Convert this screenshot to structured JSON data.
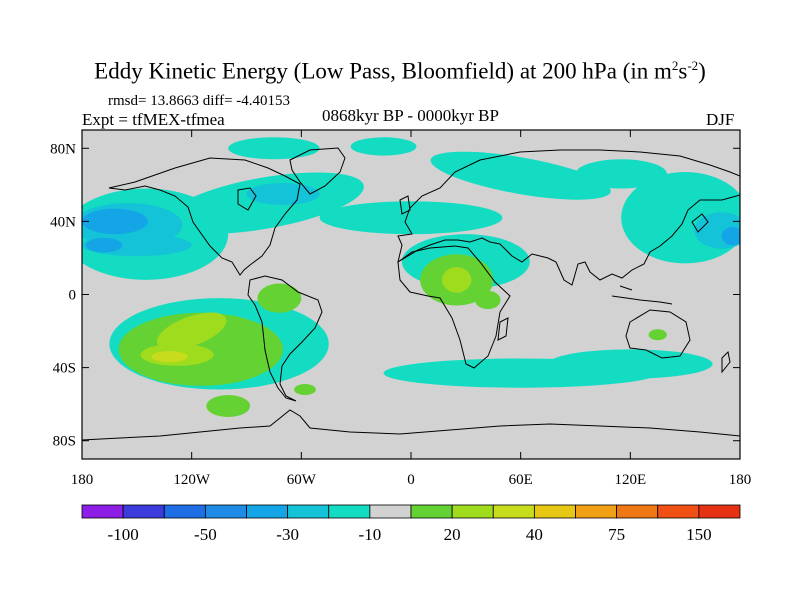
{
  "title": {
    "main": "Eddy Kinetic Energy (Low Pass, Bloomfield) at 200 hPa (in m",
    "sup1": "2",
    "mid": "s",
    "sup2": "-2",
    "end": ")"
  },
  "stats": "rmsd= 13.8663 diff= -4.40153",
  "experiment": "Expt = tfMEX-tfmea",
  "period": "0868kyr BP - 0000kyr BP",
  "season": "DJF",
  "chart_data": {
    "type": "heatmap",
    "projection": "cylindrical-equidistant",
    "xlim": [
      -180,
      180
    ],
    "ylim": [
      -90,
      90
    ],
    "x_ticks": [
      {
        "value": -180,
        "label": "180"
      },
      {
        "value": -120,
        "label": "120W"
      },
      {
        "value": -60,
        "label": "60W"
      },
      {
        "value": 0,
        "label": "0"
      },
      {
        "value": 60,
        "label": "60E"
      },
      {
        "value": 120,
        "label": "120E"
      },
      {
        "value": 180,
        "label": "180"
      }
    ],
    "y_ticks": [
      {
        "value": 80,
        "label": "80N"
      },
      {
        "value": 40,
        "label": "40N"
      },
      {
        "value": 0,
        "label": "0"
      },
      {
        "value": -40,
        "label": "40S"
      },
      {
        "value": -80,
        "label": "80S"
      }
    ],
    "colorbar": {
      "colors": [
        "#8c1ee6",
        "#3c3cdc",
        "#1e6ee6",
        "#1e8ce6",
        "#14a5e6",
        "#14c3d7",
        "#14dcc3",
        "#d2d2d2",
        "#64d232",
        "#a0dc1e",
        "#c8dc1e",
        "#e6c814",
        "#f0a014",
        "#f07814",
        "#f05014",
        "#e63214"
      ],
      "tick_labels": [
        {
          "boundary": 1,
          "label": "-100"
        },
        {
          "boundary": 3,
          "label": "-50"
        },
        {
          "boundary": 5,
          "label": "-30"
        },
        {
          "boundary": 7,
          "label": "-10"
        },
        {
          "boundary": 9,
          "label": "20"
        },
        {
          "boundary": 11,
          "label": "40"
        },
        {
          "boundary": 13,
          "label": "75"
        },
        {
          "boundary": 15,
          "label": "150"
        }
      ]
    },
    "regions": [
      {
        "level": 6,
        "lon": -145,
        "lat": 33,
        "rlon": 45,
        "rlat": 25,
        "rot": 0
      },
      {
        "level": 6,
        "lon": -80,
        "lat": 50,
        "rlon": 55,
        "rlat": 14,
        "rot": -10
      },
      {
        "level": 6,
        "lon": 0,
        "lat": 42,
        "rlon": 50,
        "rlat": 9,
        "rot": 0
      },
      {
        "level": 6,
        "lon": 60,
        "lat": 65,
        "rlon": 50,
        "rlat": 10,
        "rot": 10
      },
      {
        "level": 6,
        "lon": 150,
        "lat": 42,
        "rlon": 35,
        "rlat": 25,
        "rot": 0
      },
      {
        "level": 6,
        "lon": -75,
        "lat": 80,
        "rlon": 25,
        "rlat": 6,
        "rot": 0
      },
      {
        "level": 6,
        "lon": -15,
        "lat": 81,
        "rlon": 18,
        "rlat": 5,
        "rot": 0
      },
      {
        "level": 6,
        "lon": 115,
        "lat": 66,
        "rlon": 25,
        "rlat": 8,
        "rot": 0
      },
      {
        "level": 6,
        "lon": 30,
        "lat": 18,
        "rlon": 35,
        "rlat": 15,
        "rot": 0
      },
      {
        "level": 6,
        "lon": -105,
        "lat": -27,
        "rlon": 60,
        "rlat": 25,
        "rot": 0
      },
      {
        "level": 6,
        "lon": 60,
        "lat": -43,
        "rlon": 75,
        "rlat": 8,
        "rot": 0
      },
      {
        "level": 6,
        "lon": 120,
        "lat": -38,
        "rlon": 45,
        "rlat": 8,
        "rot": 0
      },
      {
        "level": 5,
        "lon": -155,
        "lat": 38,
        "rlon": 30,
        "rlat": 12,
        "rot": 0
      },
      {
        "level": 5,
        "lon": -150,
        "lat": 27,
        "rlon": 30,
        "rlat": 6,
        "rot": 0
      },
      {
        "level": 5,
        "lon": 170,
        "lat": 35,
        "rlon": 15,
        "rlat": 10,
        "rot": 0
      },
      {
        "level": 5,
        "lon": -70,
        "lat": 55,
        "rlon": 20,
        "rlat": 6,
        "rot": 0
      },
      {
        "level": 4,
        "lon": -162,
        "lat": 40,
        "rlon": 18,
        "rlat": 7,
        "rot": 0
      },
      {
        "level": 4,
        "lon": -168,
        "lat": 27,
        "rlon": 10,
        "rlat": 4,
        "rot": 0
      },
      {
        "level": 4,
        "lon": 176,
        "lat": 32,
        "rlon": 6,
        "rlat": 5,
        "rot": 0
      },
      {
        "level": 7,
        "lon": -135,
        "lat": 32,
        "rlon": 13,
        "rlat": 4,
        "rot": 0
      },
      {
        "level": 7,
        "lon": -95,
        "lat": 58,
        "rlon": 10,
        "rlat": 4,
        "rot": 0
      },
      {
        "level": 8,
        "lon": -115,
        "lat": -30,
        "rlon": 45,
        "rlat": 20,
        "rot": 0
      },
      {
        "level": 8,
        "lon": -72,
        "lat": -2,
        "rlon": 12,
        "rlat": 8,
        "rot": 0
      },
      {
        "level": 8,
        "lon": 25,
        "lat": 8,
        "rlon": 20,
        "rlat": 14,
        "rot": 0
      },
      {
        "level": 8,
        "lon": -100,
        "lat": -61,
        "rlon": 12,
        "rlat": 6,
        "rot": 0
      },
      {
        "level": 8,
        "lon": 42,
        "lat": -3,
        "rlon": 7,
        "rlat": 5,
        "rot": 0
      },
      {
        "level": 8,
        "lon": -58,
        "lat": -52,
        "rlon": 6,
        "rlat": 3,
        "rot": 0
      },
      {
        "level": 8,
        "lon": 135,
        "lat": -22,
        "rlon": 5,
        "rlat": 3,
        "rot": 0
      },
      {
        "level": 9,
        "lon": -120,
        "lat": -20,
        "rlon": 20,
        "rlat": 8,
        "rot": -20
      },
      {
        "level": 9,
        "lon": -128,
        "lat": -33,
        "rlon": 20,
        "rlat": 6,
        "rot": 0
      },
      {
        "level": 9,
        "lon": 25,
        "lat": 8,
        "rlon": 8,
        "rlat": 7,
        "rot": 0
      },
      {
        "level": 10,
        "lon": -132,
        "lat": -34,
        "rlon": 10,
        "rlat": 3,
        "rot": 0
      }
    ]
  }
}
